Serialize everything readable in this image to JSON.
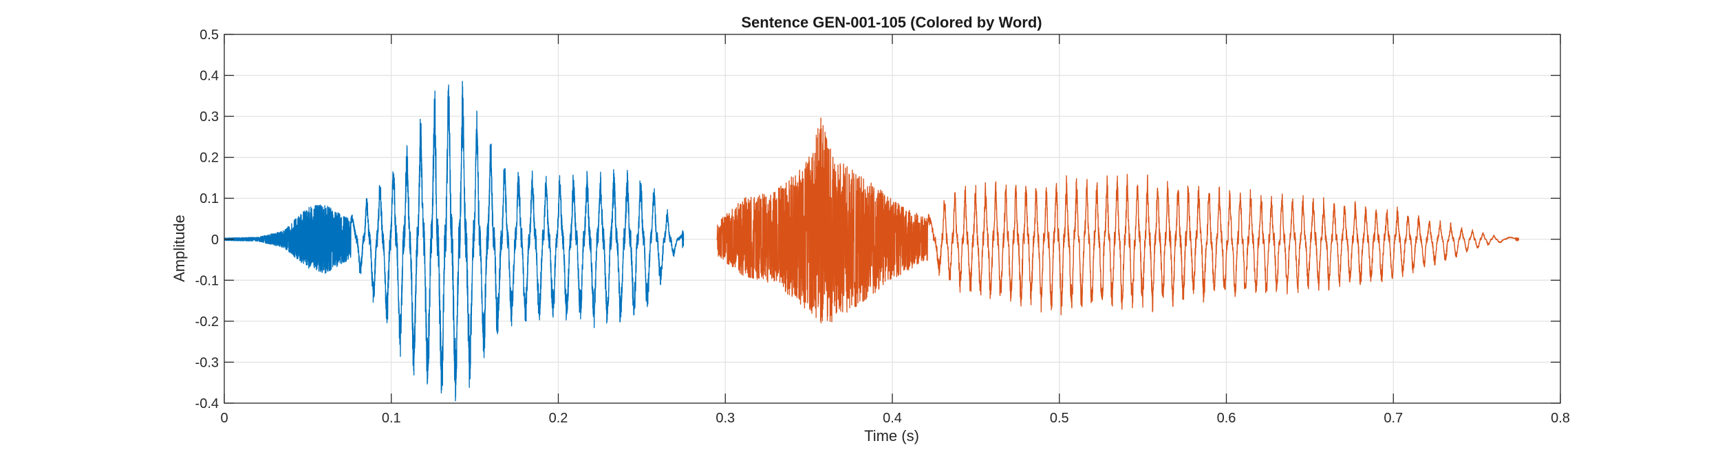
{
  "chart_data": {
    "type": "line",
    "title": "Sentence GEN-001-105 (Colored by Word)",
    "xlabel": "Time (s)",
    "ylabel": "Amplitude",
    "xlim": [
      0,
      0.8
    ],
    "ylim": [
      -0.4,
      0.5
    ],
    "x_ticks": [
      0,
      0.1,
      0.2,
      0.3,
      0.4,
      0.5,
      0.6,
      0.7,
      0.8
    ],
    "x_tick_labels": [
      "0",
      "0.1",
      "0.2",
      "0.3",
      "0.4",
      "0.5",
      "0.6",
      "0.7",
      "0.8"
    ],
    "y_ticks": [
      -0.4,
      -0.3,
      -0.2,
      -0.1,
      0,
      0.1,
      0.2,
      0.3,
      0.4,
      0.5
    ],
    "y_tick_labels": [
      "-0.4",
      "-0.3",
      "-0.2",
      "-0.1",
      "0",
      "0.1",
      "0.2",
      "0.3",
      "0.4",
      "0.5"
    ],
    "grid": true,
    "legend": "none",
    "series": [
      {
        "color": "#0072BD",
        "x_range": [
          0,
          0.275
        ],
        "envelope": {
          "t": [
            0,
            0.02,
            0.035,
            0.05,
            0.06,
            0.075,
            0.08,
            0.09,
            0.1,
            0.11,
            0.12,
            0.13,
            0.138,
            0.145,
            0.155,
            0.17,
            0.2,
            0.22,
            0.24,
            0.255,
            0.265,
            0.27,
            0.275
          ],
          "max": [
            0.003,
            0.005,
            0.02,
            0.08,
            0.085,
            0.05,
            0.07,
            0.12,
            0.18,
            0.22,
            0.3,
            0.36,
            0.405,
            0.34,
            0.25,
            0.17,
            0.14,
            0.15,
            0.16,
            0.14,
            0.07,
            0.03,
            0.02
          ],
          "min": [
            -0.003,
            -0.005,
            -0.02,
            -0.07,
            -0.085,
            -0.05,
            -0.07,
            -0.15,
            -0.22,
            -0.3,
            -0.33,
            -0.37,
            -0.38,
            -0.35,
            -0.27,
            -0.2,
            -0.19,
            -0.2,
            -0.2,
            -0.16,
            -0.08,
            -0.03,
            -0.02
          ],
          "dominant_freq": [
            0,
            0,
            0,
            0,
            0,
            0,
            130,
            125,
            125,
            122,
            120,
            120,
            118,
            118,
            120,
            120,
            122,
            124,
            125,
            125,
            125,
            125,
            0
          ]
        }
      },
      {
        "color": "#D95319",
        "x_range": [
          0.295,
          0.775
        ],
        "envelope": {
          "t": [
            0.295,
            0.31,
            0.33,
            0.35,
            0.357,
            0.365,
            0.38,
            0.4,
            0.42,
            0.43,
            0.45,
            0.5,
            0.55,
            0.6,
            0.65,
            0.7,
            0.72,
            0.74,
            0.76,
            0.775
          ],
          "max": [
            0.04,
            0.1,
            0.12,
            0.2,
            0.3,
            0.2,
            0.16,
            0.1,
            0.05,
            0.1,
            0.13,
            0.14,
            0.15,
            0.12,
            0.1,
            0.07,
            0.05,
            0.03,
            0.01,
            0.003
          ],
          "min": [
            -0.04,
            -0.09,
            -0.11,
            -0.18,
            -0.21,
            -0.2,
            -0.16,
            -0.1,
            -0.05,
            -0.09,
            -0.14,
            -0.17,
            -0.16,
            -0.14,
            -0.12,
            -0.1,
            -0.07,
            -0.04,
            -0.01,
            -0.003
          ],
          "dominant_freq": [
            0,
            0,
            0,
            0,
            0,
            0,
            0,
            0,
            0,
            160,
            165,
            165,
            165,
            160,
            160,
            158,
            156,
            155,
            155,
            0
          ]
        }
      }
    ]
  }
}
